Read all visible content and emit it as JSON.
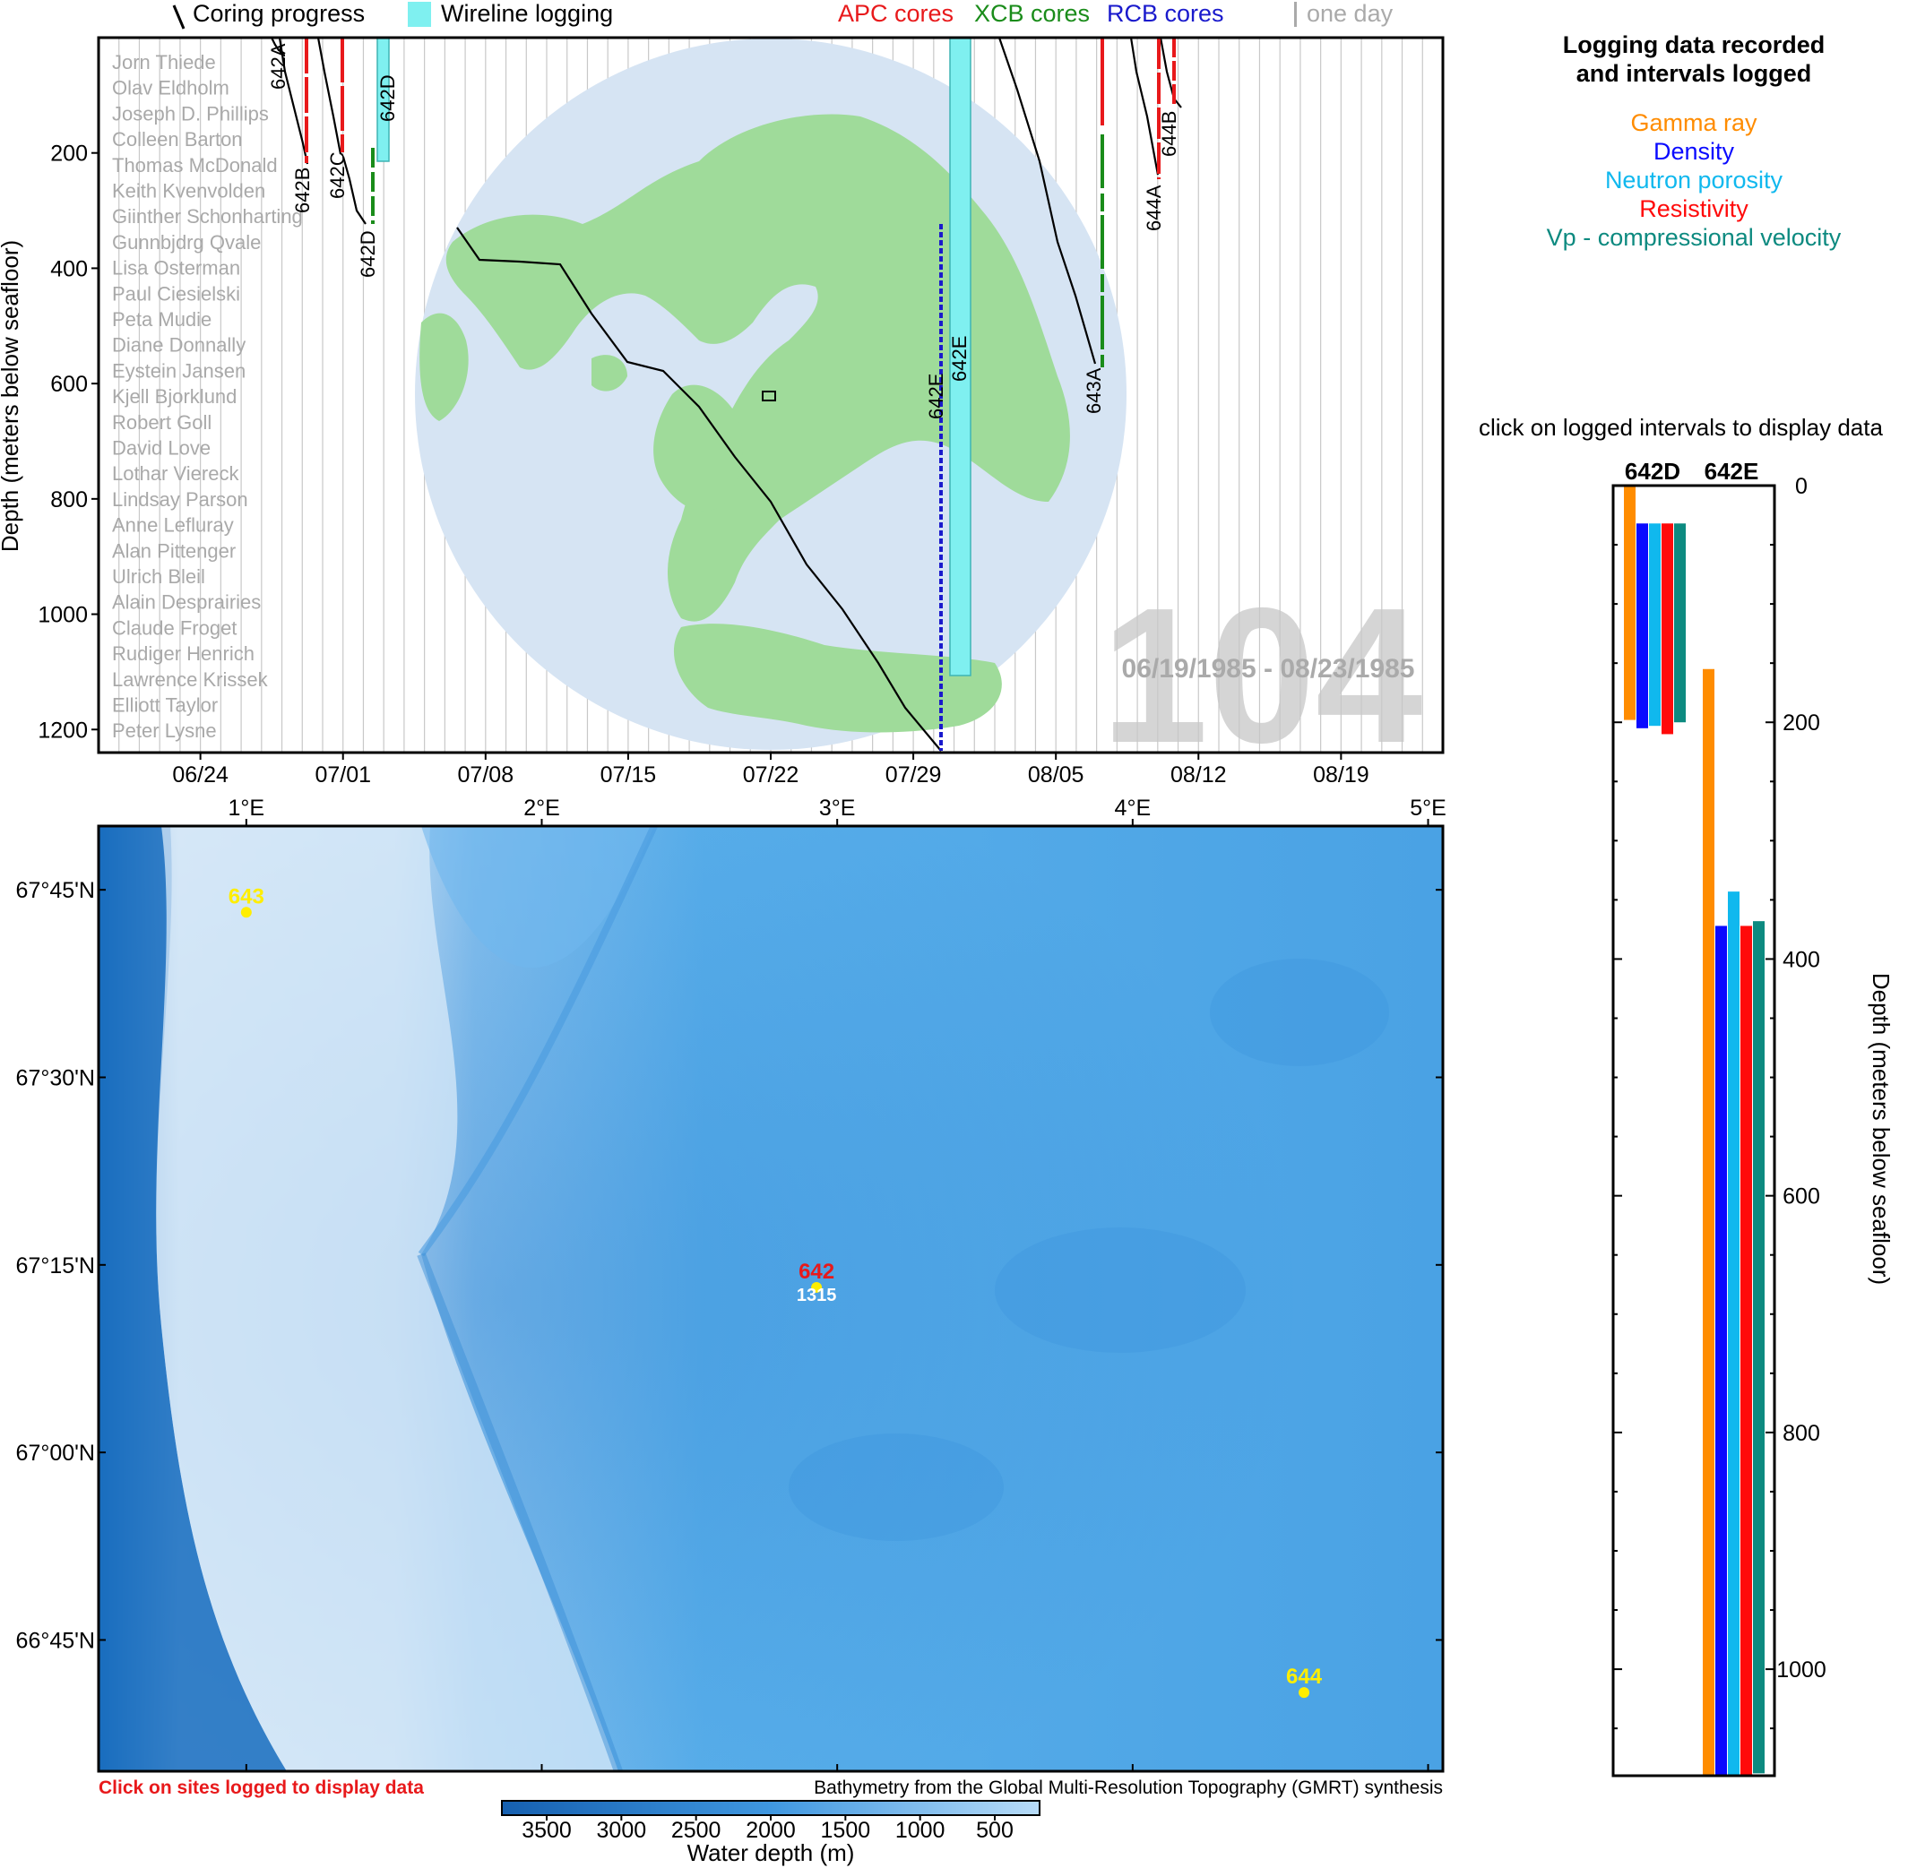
{
  "top_legend": {
    "coring": "Coring progress",
    "wireline": "Wireline logging",
    "apc": "APC cores",
    "xcb": "XCB cores",
    "rcb": "RCB cores",
    "one_day": "one day"
  },
  "colors": {
    "apc": "#e8191b",
    "xcb": "#1a8c1a",
    "rcb": "#1a1acc",
    "wireline": "#7ff0f0",
    "gamma": "#ff8c00",
    "density": "#0a0aff",
    "neutron": "#10b8ee",
    "resistivity": "#ff0a0a",
    "vp": "#0d8a80",
    "globe_ocean": "#d6e4f3",
    "globe_land": "#9fdb9a",
    "map_deep": "#1565b5",
    "map_shallow": "#dbeaf7",
    "site_yellow": "#ffee00",
    "site_red": "#e8191b"
  },
  "timeline": {
    "ylabel": "Depth (meters below seafloor)",
    "y_ticks": [
      "200",
      "400",
      "600",
      "800",
      "1000",
      "1200"
    ],
    "x_ticks": [
      "06/24",
      "07/01",
      "07/08",
      "07/15",
      "07/22",
      "07/29",
      "08/05",
      "08/12",
      "08/19"
    ],
    "expedition": "104",
    "date_range": "06/19/1985 - 08/23/1985",
    "scientists": [
      "Jorn Thiede",
      "Olav Eldholm",
      "Joseph D. Phillips",
      "Colleen Barton",
      "Thomas McDonald",
      "Keith Kvenvolden",
      "Giinther Schonharting",
      "Gunnbjdrg Qvale",
      "Lisa Osterman",
      "Paul Ciesielski",
      "Peta Mudie",
      "Diane Donnally",
      "Eystein Jansen",
      "Kjell Bjorklund",
      "Robert Goll",
      "David Love",
      "Lothar Viereck",
      "Lindsay Parson",
      "Anne Lefluray",
      "Alan Pittenger",
      "Ulrich Bleil",
      "Alain Desprairies",
      "Claude Froget",
      "Rudiger Henrich",
      "Lawrence Krissek",
      "Elliott Taylor",
      "Peter Lysne"
    ],
    "holes": [
      {
        "name": "642A",
        "depth": 30
      },
      {
        "name": "642B",
        "depth": 220
      },
      {
        "name": "642C",
        "depth": 200
      },
      {
        "name": "642D",
        "depth": 320
      },
      {
        "name": "642E",
        "depth": 1230
      },
      {
        "name": "643A",
        "depth": 560
      },
      {
        "name": "644A",
        "depth": 260
      },
      {
        "name": "644B",
        "depth": 125
      }
    ],
    "wireline_labels": [
      "642D",
      "642E"
    ]
  },
  "map": {
    "x_ticks": [
      "1°E",
      "2°E",
      "3°E",
      "4°E",
      "5°E"
    ],
    "y_ticks": [
      "67°45'N",
      "67°30'N",
      "67°15'N",
      "67°00'N",
      "66°45'N"
    ],
    "sites": [
      {
        "name": "643",
        "lon": 1.0,
        "lat": 67.72
      },
      {
        "name": "642",
        "lon": 2.93,
        "lat": 67.22,
        "depth": "1315"
      },
      {
        "name": "644",
        "lon": 4.58,
        "lat": 66.68
      }
    ],
    "click_note": "Click on sites logged to display data",
    "credit": "Bathymetry from the Global Multi-Resolution Topography (GMRT) synthesis",
    "colorbar_ticks": [
      "3500",
      "3000",
      "2500",
      "2000",
      "1500",
      "1000",
      "500"
    ],
    "colorbar_label": "Water depth (m)"
  },
  "logging_panel": {
    "title_line1": "Logging data recorded",
    "title_line2": "and intervals logged",
    "legend": [
      "Gamma ray",
      "Density",
      "Neutron porosity",
      "Resistivity",
      "Vp - compressional velocity"
    ],
    "click_note": "click on logged intervals to display data",
    "holes": [
      "642D",
      "642E"
    ],
    "y_ticks": [
      "0",
      "200",
      "400",
      "600",
      "800",
      "1000"
    ],
    "ylabel": "Depth (meters below seafloor)"
  },
  "chart_data": {
    "type": "bar",
    "title": "Logging data recorded and intervals logged",
    "ylabel": "Depth (meters below seafloor)",
    "ylim": [
      0,
      1090
    ],
    "categories": [
      "642D",
      "642E"
    ],
    "series": [
      {
        "name": "Gamma ray",
        "intervals": [
          [
            0,
            198
          ],
          [
            155,
            1090
          ]
        ]
      },
      {
        "name": "Density",
        "intervals": [
          [
            32,
            205
          ],
          [
            372,
            1090
          ]
        ]
      },
      {
        "name": "Neutron porosity",
        "intervals": [
          [
            32,
            203
          ],
          [
            343,
            1090
          ]
        ]
      },
      {
        "name": "Resistivity",
        "intervals": [
          [
            32,
            210
          ],
          [
            372,
            1090
          ]
        ]
      },
      {
        "name": "Vp - compressional velocity",
        "intervals": [
          [
            32,
            200
          ],
          [
            368,
            1088
          ]
        ]
      }
    ]
  }
}
